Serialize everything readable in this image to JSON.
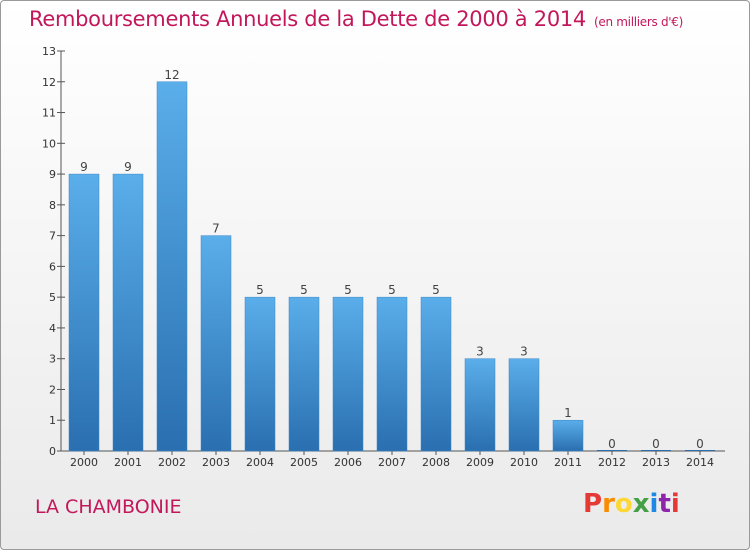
{
  "title": "Remboursements Annuels de la Dette de 2000 à 2014",
  "unit": "(en milliers d'€)",
  "commune": "LA CHAMBONIE",
  "logo": {
    "letters": [
      "P",
      "r",
      "o",
      "x",
      "i",
      "t",
      "i"
    ],
    "colors": [
      "#e53935",
      "#fb8c00",
      "#fdd835",
      "#43a047",
      "#1e88e5",
      "#8e24aa",
      "#e53935"
    ]
  },
  "colors": {
    "bar_top": "#5aaeea",
    "bar_bottom": "#2a6fb0",
    "title": "#c2185b",
    "axis": "#555555"
  },
  "chart_data": {
    "type": "bar",
    "title": "Remboursements Annuels de la Dette de 2000 à 2014",
    "categories": [
      "2000",
      "2001",
      "2002",
      "2003",
      "2004",
      "2005",
      "2006",
      "2007",
      "2008",
      "2009",
      "2010",
      "2011",
      "2012",
      "2013",
      "2014"
    ],
    "values": [
      9,
      9,
      12,
      7,
      5,
      5,
      5,
      5,
      5,
      3,
      3,
      1,
      0,
      0,
      0
    ],
    "yticks": [
      "0",
      "1",
      "2",
      "3",
      "4",
      "5",
      "6",
      "7",
      "8",
      "9",
      "10",
      "11",
      "12",
      "13"
    ],
    "ylim": [
      0,
      13
    ],
    "grid": false,
    "data_labels": true
  }
}
